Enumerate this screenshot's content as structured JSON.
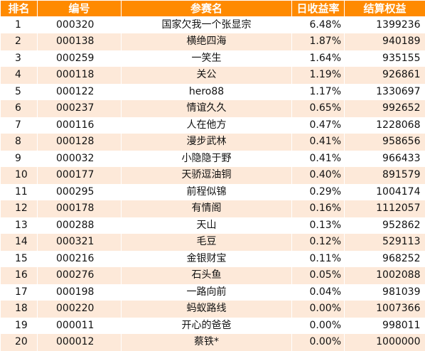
{
  "headers": {
    "rank": "排名",
    "id": "编号",
    "name": "参赛名",
    "daily_return": "日收益率",
    "equity": "结算权益"
  },
  "rows": [
    {
      "rank": "1",
      "id": "000320",
      "name": "国家欠我一个张显宗",
      "daily_return": "6.48%",
      "equity": "1399236"
    },
    {
      "rank": "2",
      "id": "000138",
      "name": "横绝四海",
      "daily_return": "1.87%",
      "equity": "940189"
    },
    {
      "rank": "3",
      "id": "000259",
      "name": "一笑生",
      "daily_return": "1.64%",
      "equity": "935155"
    },
    {
      "rank": "4",
      "id": "000118",
      "name": "关公",
      "daily_return": "1.19%",
      "equity": "926861"
    },
    {
      "rank": "5",
      "id": "000122",
      "name": "hero88",
      "daily_return": "1.17%",
      "equity": "1330697"
    },
    {
      "rank": "6",
      "id": "000237",
      "name": "情谊久久",
      "daily_return": "0.65%",
      "equity": "992652"
    },
    {
      "rank": "7",
      "id": "000116",
      "name": "人在他方",
      "daily_return": "0.47%",
      "equity": "1228068"
    },
    {
      "rank": "8",
      "id": "000128",
      "name": "漫步武林",
      "daily_return": "0.41%",
      "equity": "958656"
    },
    {
      "rank": "9",
      "id": "000032",
      "name": "小隐隐于野",
      "daily_return": "0.41%",
      "equity": "966433"
    },
    {
      "rank": "10",
      "id": "000177",
      "name": "天骄逗油铜",
      "daily_return": "0.40%",
      "equity": "891579"
    },
    {
      "rank": "11",
      "id": "000295",
      "name": "前程似锦",
      "daily_return": "0.29%",
      "equity": "1004174"
    },
    {
      "rank": "12",
      "id": "000178",
      "name": "有情阁",
      "daily_return": "0.16%",
      "equity": "1112057"
    },
    {
      "rank": "13",
      "id": "000288",
      "name": "天山",
      "daily_return": "0.13%",
      "equity": "952862"
    },
    {
      "rank": "14",
      "id": "000321",
      "name": "毛豆",
      "daily_return": "0.12%",
      "equity": "529113"
    },
    {
      "rank": "15",
      "id": "000216",
      "name": "金银财宝",
      "daily_return": "0.11%",
      "equity": "968252"
    },
    {
      "rank": "16",
      "id": "000276",
      "name": "石头鱼",
      "daily_return": "0.05%",
      "equity": "1002088"
    },
    {
      "rank": "17",
      "id": "000198",
      "name": "一路向前",
      "daily_return": "0.04%",
      "equity": "981039"
    },
    {
      "rank": "18",
      "id": "000220",
      "name": "蚂蚁路线",
      "daily_return": "0.00%",
      "equity": "1007366"
    },
    {
      "rank": "19",
      "id": "000011",
      "name": "开心的爸爸",
      "daily_return": "0.00%",
      "equity": "998011"
    },
    {
      "rank": "20",
      "id": "000012",
      "name": "蔡铁*",
      "daily_return": "0.00%",
      "equity": "1000000"
    }
  ],
  "colors": {
    "header_bg": "#ff8a00",
    "header_text": "#ffffff",
    "row_alt_bg": "#fde9d9",
    "row_bg": "#ffffff"
  }
}
